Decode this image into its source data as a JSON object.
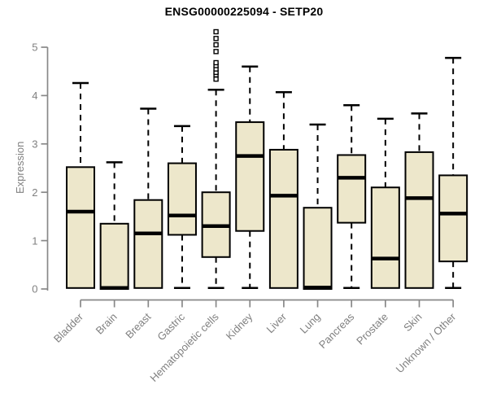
{
  "title": "ENSG00000225094 - SETP20",
  "colors": {
    "background": "#ffffff",
    "box_fill": "#ede7cb",
    "box_stroke": "#000000",
    "median_stroke": "#000000",
    "whisker_stroke": "#000000",
    "outlier_stroke": "#000000",
    "axis": "#888888",
    "tick_label": "#808080",
    "title_color": "#000000"
  },
  "chart_data": {
    "type": "boxplot",
    "title": "ENSG00000225094 - SETP20",
    "xlabel": "",
    "ylabel": "Expression",
    "ylim": [
      0,
      5
    ],
    "yticks": [
      0,
      1,
      2,
      3,
      4,
      5
    ],
    "grid": false,
    "legend": "none",
    "categories": [
      "Bladder",
      "Brain",
      "Breast",
      "Gastric",
      "Hematopoietic cells",
      "Kidney",
      "Liver",
      "Lung",
      "Pancreas",
      "Prostate",
      "Skin",
      "Unknown / Other"
    ],
    "series": [
      {
        "name": "Bladder",
        "whisker_low": 0.02,
        "q1": 0.02,
        "median": 1.6,
        "q3": 2.52,
        "whisker_high": 4.26,
        "outliers": []
      },
      {
        "name": "Brain",
        "whisker_low": 0.0,
        "q1": 0.0,
        "median": 0.02,
        "q3": 1.35,
        "whisker_high": 2.62,
        "outliers": []
      },
      {
        "name": "Breast",
        "whisker_low": 0.02,
        "q1": 0.02,
        "median": 1.15,
        "q3": 1.84,
        "whisker_high": 3.73,
        "outliers": []
      },
      {
        "name": "Gastric",
        "whisker_low": 0.02,
        "q1": 1.12,
        "median": 1.52,
        "q3": 2.6,
        "whisker_high": 3.37,
        "outliers": []
      },
      {
        "name": "Hematopoietic cells",
        "whisker_low": 0.02,
        "q1": 0.66,
        "median": 1.3,
        "q3": 2.0,
        "whisker_high": 4.12,
        "outliers": [
          4.34,
          4.43,
          4.48,
          4.55,
          4.62,
          4.68,
          4.91,
          5.05,
          5.18,
          5.32
        ]
      },
      {
        "name": "Kidney",
        "whisker_low": 0.02,
        "q1": 1.2,
        "median": 2.75,
        "q3": 3.45,
        "whisker_high": 4.6,
        "outliers": []
      },
      {
        "name": "Liver",
        "whisker_low": 0.02,
        "q1": 0.02,
        "median": 1.93,
        "q3": 2.88,
        "whisker_high": 4.07,
        "outliers": []
      },
      {
        "name": "Lung",
        "whisker_low": 0.0,
        "q1": 0.0,
        "median": 0.03,
        "q3": 1.68,
        "whisker_high": 3.4,
        "outliers": []
      },
      {
        "name": "Pancreas",
        "whisker_low": 0.02,
        "q1": 1.37,
        "median": 2.3,
        "q3": 2.77,
        "whisker_high": 3.8,
        "outliers": []
      },
      {
        "name": "Prostate",
        "whisker_low": 0.02,
        "q1": 0.02,
        "median": 0.63,
        "q3": 2.1,
        "whisker_high": 3.52,
        "outliers": []
      },
      {
        "name": "Skin",
        "whisker_low": 0.02,
        "q1": 0.02,
        "median": 1.88,
        "q3": 2.83,
        "whisker_high": 3.63,
        "outliers": []
      },
      {
        "name": "Unknown / Other",
        "whisker_low": 0.02,
        "q1": 0.57,
        "median": 1.56,
        "q3": 2.35,
        "whisker_high": 4.78,
        "outliers": []
      }
    ]
  }
}
